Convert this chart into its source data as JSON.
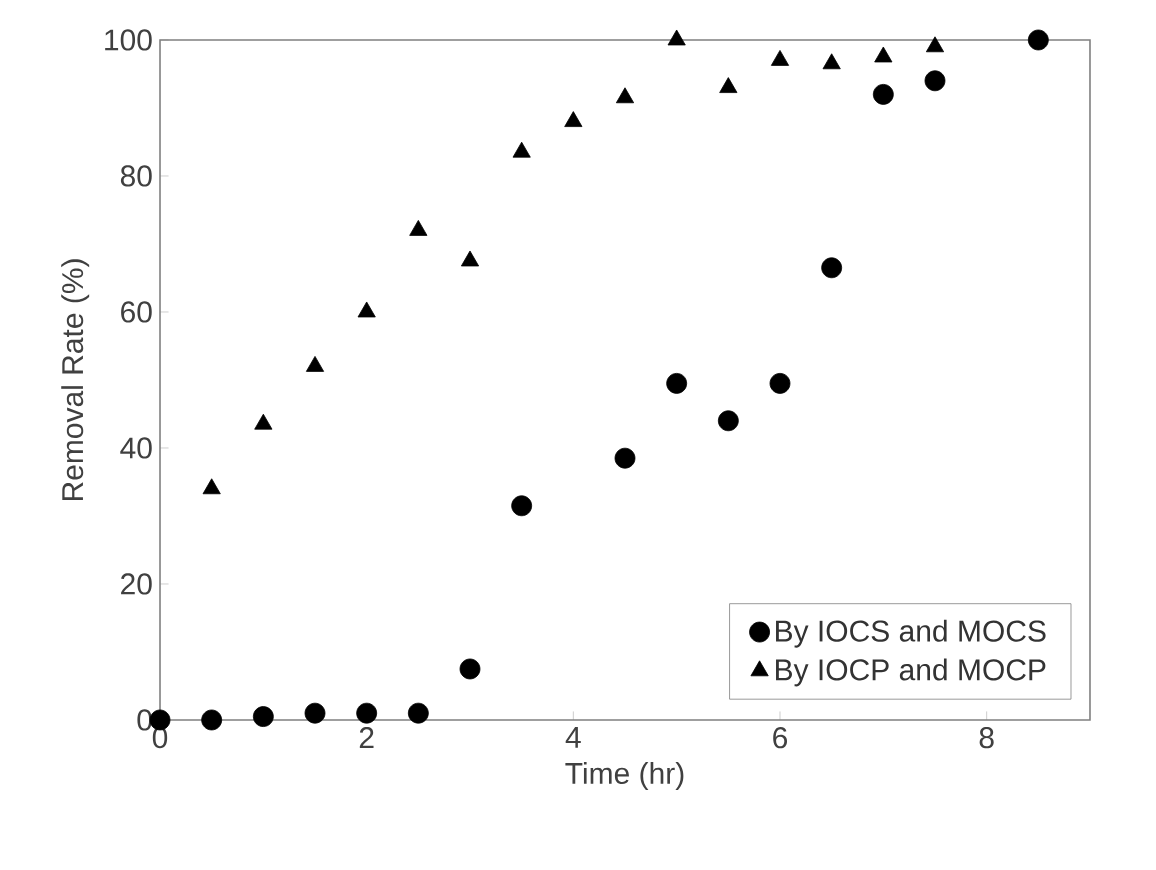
{
  "chart_data": {
    "type": "scatter",
    "xlabel": "Time (hr)",
    "ylabel": "Removal Rate (%)",
    "xlim": [
      0,
      9
    ],
    "ylim": [
      0,
      100
    ],
    "xticks": [
      0,
      2,
      4,
      6,
      8
    ],
    "yticks": [
      0,
      20,
      40,
      60,
      80,
      100
    ],
    "grid": false,
    "legend": "bottom right",
    "series": [
      {
        "name": "By IOCS and MOCS",
        "color": "#000000",
        "marker": "circle",
        "x": [
          0,
          0.5,
          1,
          1.5,
          2,
          2.5,
          3,
          3.5,
          4.5,
          5,
          5.5,
          6,
          6.5,
          7,
          7.5,
          8.5
        ],
        "values": [
          0,
          0,
          0.5,
          1,
          1,
          1,
          7.5,
          31.5,
          38.5,
          49.5,
          44,
          49.5,
          66.5,
          92,
          94,
          100
        ]
      },
      {
        "name": "By IOCP and MOCP",
        "color": "#000000",
        "marker": "triangle",
        "x": [
          0.5,
          1,
          1.5,
          2,
          2.5,
          3,
          3.5,
          4,
          4.5,
          5,
          5.5,
          6,
          6.5,
          7,
          7.5
        ],
        "values": [
          34,
          43.5,
          52,
          60,
          72,
          67.5,
          83.5,
          88,
          91.5,
          100,
          93,
          97,
          96.5,
          97.5,
          99
        ]
      }
    ]
  }
}
